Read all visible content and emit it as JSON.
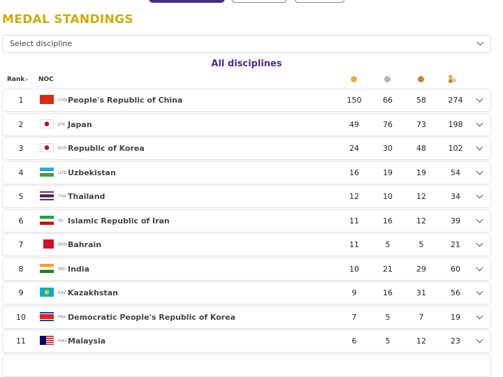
{
  "header": {
    "title": "MEDAL STANDINGS",
    "discipline_select": "Select discipline",
    "subtitle": "All disciplines"
  },
  "table": {
    "columns": [
      "Rank",
      "NOC"
    ],
    "rows": [
      [
        1,
        "CHN",
        "People's Republic of China",
        150,
        66,
        58,
        274
      ],
      [
        2,
        "JPN",
        "Japan",
        49,
        76,
        73,
        198
      ],
      [
        3,
        "KOR",
        "Republic of Korea",
        24,
        30,
        48,
        102
      ],
      [
        4,
        "UZB",
        "Uzbekistan",
        16,
        19,
        19,
        54
      ],
      [
        5,
        "THA",
        "Thailand",
        12,
        10,
        12,
        34
      ],
      [
        6,
        "IRI",
        "Islamic Republic of Iran",
        11,
        16,
        12,
        39
      ],
      [
        7,
        "BRN",
        "Bahrain",
        11,
        5,
        5,
        21
      ],
      [
        8,
        "IND",
        "India",
        10,
        21,
        29,
        60
      ],
      [
        9,
        "KAZ",
        "Kazakhstan",
        9,
        16,
        31,
        56
      ],
      [
        10,
        "PRK",
        "Democratic People's Republic of Korea",
        7,
        5,
        7,
        19
      ],
      [
        11,
        "MAS",
        "Malaysia",
        6,
        5,
        12,
        23
      ]
    ]
  }
}
